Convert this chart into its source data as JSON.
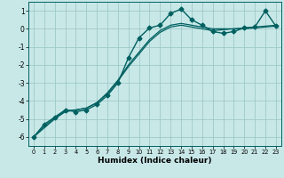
{
  "xlabel": "Humidex (Indice chaleur)",
  "ylabel": "",
  "background_color": "#c8e8e8",
  "grid_color": "#a0c8c8",
  "line_color": "#006060",
  "xlim": [
    -0.5,
    23.5
  ],
  "ylim": [
    -6.5,
    1.5
  ],
  "xticks": [
    0,
    1,
    2,
    3,
    4,
    5,
    6,
    7,
    8,
    9,
    10,
    11,
    12,
    13,
    14,
    15,
    16,
    17,
    18,
    19,
    20,
    21,
    22,
    23
  ],
  "yticks": [
    -6,
    -5,
    -4,
    -3,
    -2,
    -1,
    0,
    1
  ],
  "series": [
    {
      "x": [
        0,
        1,
        2,
        3,
        4,
        5,
        6,
        7,
        8,
        9,
        10,
        11,
        12,
        13,
        14,
        15,
        16,
        17,
        18,
        19,
        20,
        21,
        22,
        23
      ],
      "y": [
        -6.0,
        -5.3,
        -4.9,
        -4.5,
        -4.6,
        -4.5,
        -4.2,
        -3.7,
        -3.0,
        -1.6,
        -0.5,
        0.05,
        0.2,
        0.85,
        1.1,
        0.5,
        0.2,
        -0.15,
        -0.25,
        -0.15,
        0.05,
        0.1,
        1.0,
        0.15
      ],
      "marker": "D",
      "markersize": 2.5,
      "linewidth": 1.0,
      "zorder": 3
    },
    {
      "x": [
        0,
        1,
        2,
        3,
        4,
        5,
        6,
        7,
        8,
        9,
        10,
        11,
        12,
        13,
        14,
        15,
        16,
        17,
        18,
        19,
        20,
        21,
        22,
        23
      ],
      "y": [
        -6.0,
        -5.5,
        -5.0,
        -4.6,
        -4.5,
        -4.4,
        -4.1,
        -3.6,
        -2.9,
        -2.1,
        -1.4,
        -0.7,
        -0.2,
        0.1,
        0.2,
        0.1,
        0.0,
        -0.1,
        -0.05,
        0.0,
        0.0,
        0.05,
        0.1,
        0.15
      ],
      "marker": null,
      "markersize": 0,
      "linewidth": 0.9,
      "zorder": 2
    },
    {
      "x": [
        0,
        1,
        2,
        3,
        4,
        5,
        6,
        7,
        8,
        9,
        10,
        11,
        12,
        13,
        14,
        15,
        16,
        17,
        18,
        19,
        20,
        21,
        22,
        23
      ],
      "y": [
        -6.0,
        -5.4,
        -4.95,
        -4.55,
        -4.5,
        -4.4,
        -4.1,
        -3.55,
        -2.85,
        -2.0,
        -1.3,
        -0.6,
        -0.1,
        0.2,
        0.3,
        0.2,
        0.1,
        0.0,
        0.0,
        0.0,
        0.05,
        0.1,
        0.15,
        0.2
      ],
      "marker": null,
      "markersize": 0,
      "linewidth": 0.9,
      "zorder": 2
    }
  ]
}
